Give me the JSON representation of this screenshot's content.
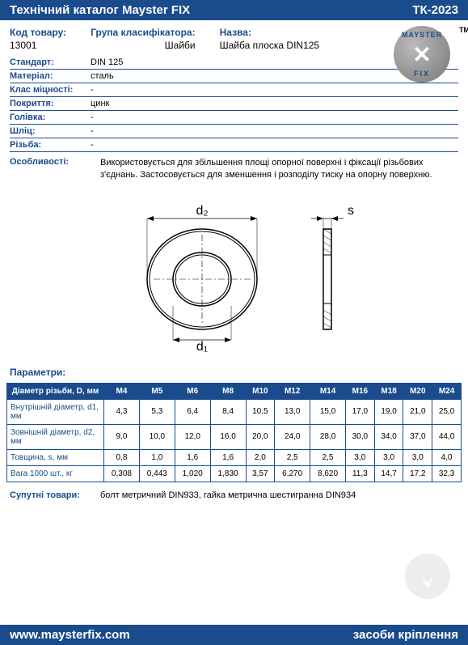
{
  "header": {
    "title": "Технічний каталог Mayster FIX",
    "code": "ТК-2023"
  },
  "footer": {
    "url": "www.maysterfix.com",
    "tagline": "засоби кріплення"
  },
  "logo": {
    "top": "MAYSTER",
    "bottom": "FIX",
    "tm": "TM"
  },
  "top": {
    "code_label": "Код товару:",
    "code_value": "13001",
    "group_label": "Група класифікатора:",
    "group_value": "Шайби",
    "name_label": "Назва:",
    "name_value": "Шайба плоска DIN125"
  },
  "specs": [
    {
      "label": "Стандарт:",
      "value": "DIN 125"
    },
    {
      "label": "Матеріал:",
      "value": "сталь"
    },
    {
      "label": "Клас міцності:",
      "value": "-"
    },
    {
      "label": "Покриття:",
      "value": "цинк"
    },
    {
      "label": "Голівка:",
      "value": "-"
    },
    {
      "label": "Шліц:",
      "value": "-"
    },
    {
      "label": "Різьба:",
      "value": "-"
    }
  ],
  "features": {
    "label": "Особливості:",
    "value": "Використовується  для збільшення площі опорної поверхні і фіксації різьбових з'єднань. Застосовується для зменшення і розподілу тиску на опорну поверхню."
  },
  "diagram": {
    "d1": "d₁",
    "d2": "d₂",
    "s": "s"
  },
  "params": {
    "title": "Параметри:",
    "header_first": "Діаметр різьби, D, мм",
    "columns": [
      "M4",
      "M5",
      "M6",
      "M8",
      "M10",
      "M12",
      "M14",
      "M16",
      "M18",
      "M20",
      "M24"
    ],
    "rows": [
      {
        "label": "Внутрішній діаметр, d1, мм",
        "values": [
          "4,3",
          "5,3",
          "6,4",
          "8,4",
          "10,5",
          "13,0",
          "15,0",
          "17,0",
          "19,0",
          "21,0",
          "25,0"
        ]
      },
      {
        "label": "Зовнішній діаметр, d2, мм",
        "values": [
          "9,0",
          "10,0",
          "12,0",
          "16,0",
          "20,0",
          "24,0",
          "28,0",
          "30,0",
          "34,0",
          "37,0",
          "44,0"
        ]
      },
      {
        "label": "Товщина, s, мм",
        "values": [
          "0,8",
          "1,0",
          "1,6",
          "1,6",
          "2,0",
          "2,5",
          "2,5",
          "3,0",
          "3,0",
          "3,0",
          "4,0"
        ]
      },
      {
        "label": "Вага 1000 шт., кг",
        "values": [
          "0,308",
          "0,443",
          "1,020",
          "1,830",
          "3,57",
          "6,270",
          "8,620",
          "11,3",
          "14,7",
          "17,2",
          "32,3"
        ]
      }
    ]
  },
  "related": {
    "label": "Супутні товари:",
    "value": "болт метричний DIN933, гайка метрична шестигранна DIN934"
  },
  "colors": {
    "brand": "#1a4b8c",
    "text": "#000000",
    "bg": "#ffffff"
  }
}
